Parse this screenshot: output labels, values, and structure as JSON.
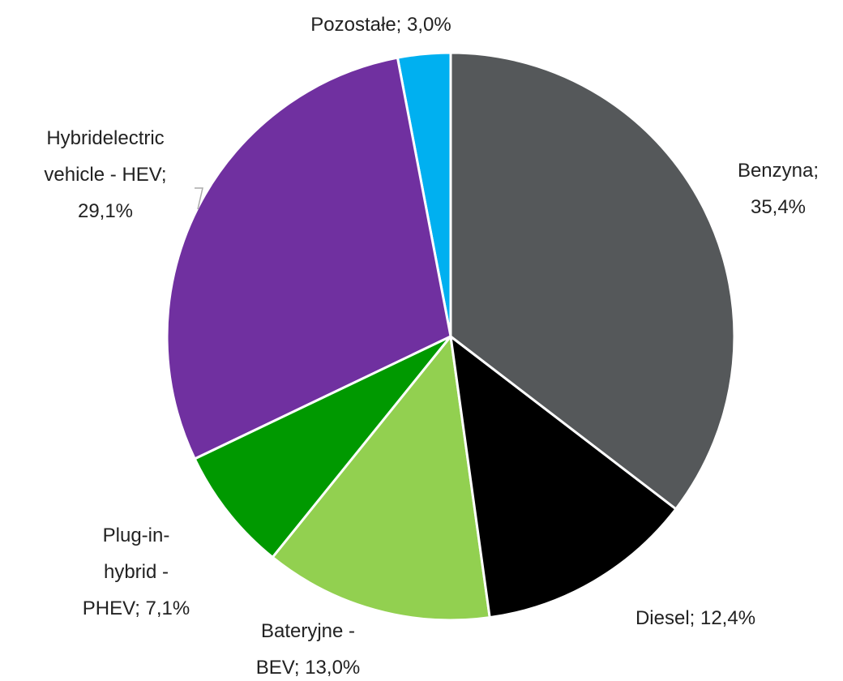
{
  "chart_data": {
    "type": "pie",
    "values": [
      35.4,
      12.4,
      13.0,
      7.1,
      29.1,
      3.0
    ],
    "value_labels": [
      "Benzyna; 35,4%",
      "Diesel; 12,4%",
      "Bateryjne - BEV; 13,0%",
      "Plug-in-hybrid - PHEV; 7,1%",
      "Hybridelectric vehicle - HEV; 29,1%",
      "Pozostałe; 3,0%"
    ],
    "colors": [
      "#55585a",
      "#000000",
      "#92d050",
      "#009900",
      "#7030a0",
      "#00b0f0"
    ]
  }
}
